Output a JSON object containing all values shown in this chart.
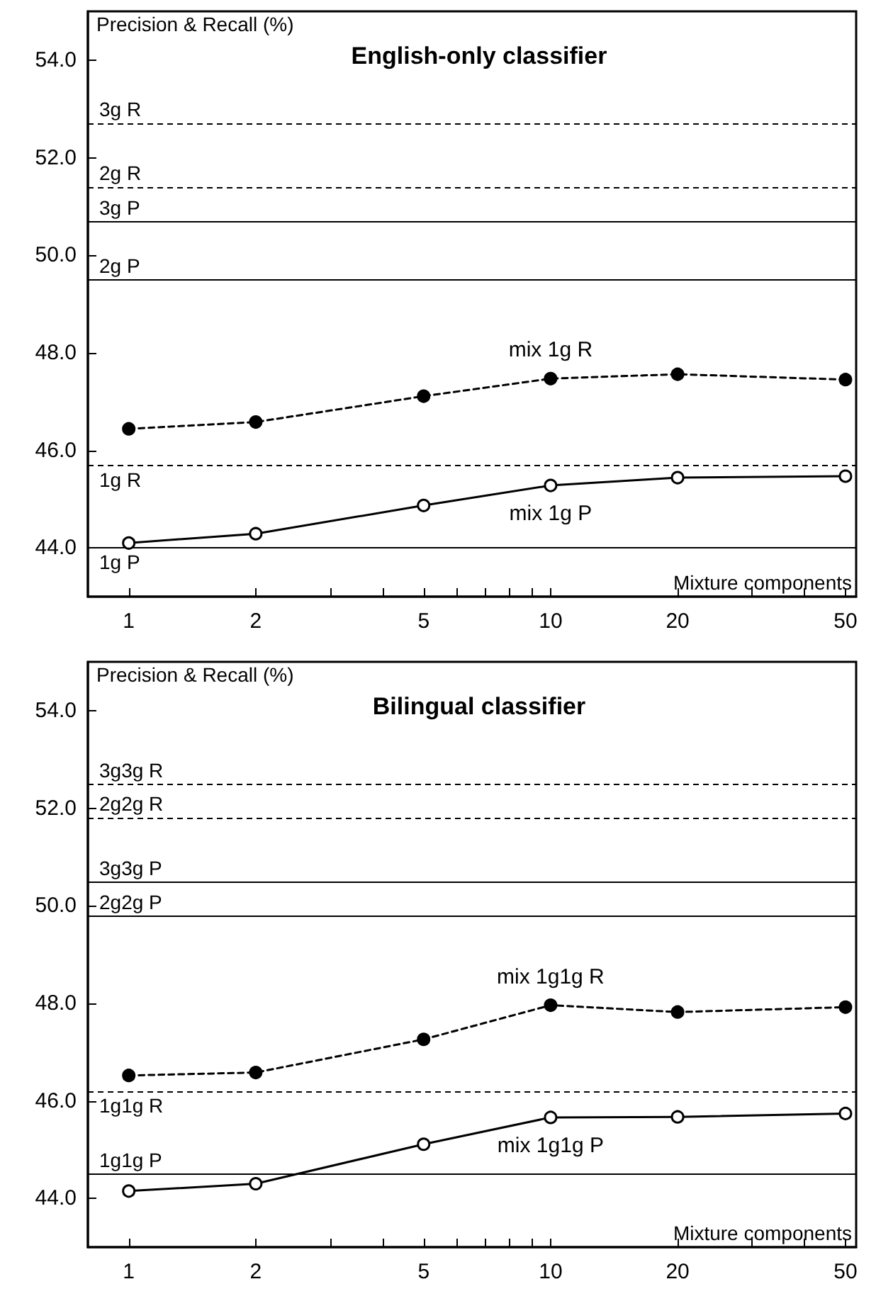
{
  "chart_data": [
    {
      "type": "line",
      "title": "English-only classifier",
      "xlabel": "Mixture components",
      "ylabel": "Precision & Recall (%)",
      "log": "x",
      "grid": false,
      "x": [
        1,
        2,
        5,
        10,
        20,
        50
      ],
      "xlim": [
        0.8,
        53
      ],
      "xticks": [
        1,
        2,
        {
          "value": 3,
          "label": null
        },
        {
          "value": 4,
          "label": null
        },
        5,
        {
          "value": 6,
          "label": null
        },
        {
          "value": 7,
          "label": null
        },
        {
          "value": 8,
          "label": null
        },
        {
          "value": 9,
          "label": null
        },
        10,
        20,
        {
          "value": 30,
          "label": null
        },
        {
          "value": 40,
          "label": null
        },
        50
      ],
      "ylim": [
        43,
        55
      ],
      "yticks": [
        {
          "value": 44,
          "label": "44.0"
        },
        {
          "value": 46,
          "label": "46.0"
        },
        {
          "value": 48,
          "label": "48.0"
        },
        {
          "value": 50,
          "label": "50.0"
        },
        {
          "value": 52,
          "label": "52.0"
        },
        {
          "value": 54,
          "label": "54.0"
        }
      ],
      "series": [
        {
          "color": "#000000",
          "marker": "circle",
          "line_style": "dashed",
          "values": [
            46.44,
            46.58,
            47.11,
            47.47,
            47.56,
            47.45
          ]
        },
        {
          "color": "#000000",
          "marker": "open circle",
          "line_style": "solid",
          "values": [
            44.1,
            44.29,
            44.87,
            45.28,
            45.44,
            45.47
          ]
        }
      ],
      "ref_lines": [
        {
          "axis": "y",
          "value": 52.7,
          "label": "3g R",
          "line_style": "dashed",
          "color": "#000000"
        },
        {
          "axis": "y",
          "value": 51.4,
          "label": "2g R",
          "line_style": "dashed",
          "color": "#000000"
        },
        {
          "axis": "y",
          "value": 50.69,
          "label": "3g P",
          "line_style": "solid",
          "color": "#000000"
        },
        {
          "axis": "y",
          "value": 49.5,
          "label": "2g P",
          "line_style": "solid",
          "color": "#000000"
        },
        {
          "axis": "y",
          "value": 45.69,
          "label": "1g R",
          "line_style": "dashed",
          "color": "#000000"
        },
        {
          "axis": "y",
          "value": 44.0,
          "label": "1g P",
          "line_style": "solid",
          "color": "#000000"
        }
      ],
      "annotations": [
        "mix 1g R",
        "mix 1g P"
      ]
    },
    {
      "type": "line",
      "title": "Bilingual classifier",
      "xlabel": "Mixture components",
      "ylabel": "Precision & Recall (%)",
      "log": "x",
      "grid": false,
      "x": [
        1,
        2,
        5,
        10,
        20,
        50
      ],
      "xlim": [
        0.8,
        53
      ],
      "xticks": [
        1,
        2,
        {
          "value": 3,
          "label": null
        },
        {
          "value": 4,
          "label": null
        },
        5,
        {
          "value": 6,
          "label": null
        },
        {
          "value": 7,
          "label": null
        },
        {
          "value": 8,
          "label": null
        },
        {
          "value": 9,
          "label": null
        },
        10,
        20,
        {
          "value": 30,
          "label": null
        },
        {
          "value": 40,
          "label": null
        },
        50
      ],
      "ylim": [
        43,
        55
      ],
      "yticks": [
        {
          "value": 44,
          "label": "44.0"
        },
        {
          "value": 46,
          "label": "46.0"
        },
        {
          "value": 48,
          "label": "48.0"
        },
        {
          "value": 50,
          "label": "50.0"
        },
        {
          "value": 52,
          "label": "52.0"
        },
        {
          "value": 54,
          "label": "54.0"
        }
      ],
      "series": [
        {
          "color": "#000000",
          "marker": "circle",
          "line_style": "dashed",
          "values": [
            46.52,
            46.58,
            47.26,
            47.96,
            47.82,
            47.92
          ]
        },
        {
          "color": "#000000",
          "marker": "open circle",
          "line_style": "solid",
          "values": [
            44.15,
            44.3,
            45.11,
            45.66,
            45.67,
            45.74
          ]
        }
      ],
      "ref_lines": [
        {
          "axis": "y",
          "value": 52.48,
          "label": "3g3g R",
          "line_style": "dashed",
          "color": "#000000"
        },
        {
          "axis": "y",
          "value": 51.8,
          "label": "2g2g R",
          "line_style": "dashed",
          "color": "#000000"
        },
        {
          "axis": "y",
          "value": 50.48,
          "label": "3g3g P",
          "line_style": "solid",
          "color": "#000000"
        },
        {
          "axis": "y",
          "value": 49.79,
          "label": "2g2g P",
          "line_style": "solid",
          "color": "#000000"
        },
        {
          "axis": "y",
          "value": 46.19,
          "label": "1g1g R",
          "line_style": "dashed",
          "color": "#000000"
        },
        {
          "axis": "y",
          "value": 44.49,
          "label": "1g1g P",
          "line_style": "solid",
          "color": "#000000"
        }
      ],
      "annotations": [
        "mix 1g1g R",
        "mix 1g1g P"
      ]
    }
  ]
}
